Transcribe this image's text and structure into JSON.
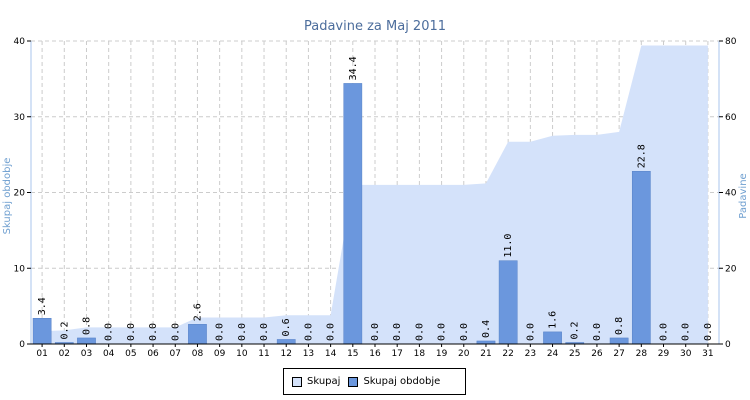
{
  "chart_data": {
    "type": "bar",
    "title": "Padavine za Maj 2011",
    "ylabel_left": "Skupaj obdobje",
    "ylabel_right": "Padavine",
    "ylim_left": [
      0,
      40
    ],
    "ylim_right": [
      0,
      80
    ],
    "yticks_left": [
      "0",
      "10",
      "20",
      "30",
      "40"
    ],
    "yticks_right": [
      "0",
      "20",
      "40",
      "60",
      "80"
    ],
    "grid": true,
    "legend_position": "bottom",
    "categories": [
      "01",
      "02",
      "03",
      "04",
      "05",
      "06",
      "07",
      "08",
      "09",
      "10",
      "11",
      "12",
      "13",
      "14",
      "15",
      "16",
      "17",
      "18",
      "19",
      "20",
      "21",
      "22",
      "23",
      "24",
      "25",
      "26",
      "27",
      "28",
      "29",
      "30",
      "31"
    ],
    "series": [
      {
        "name": "Skupaj",
        "type": "area",
        "axis": "right",
        "color": "#d4e2fa",
        "values": [
          3.4,
          3.6,
          4.4,
          4.4,
          4.4,
          4.4,
          4.4,
          7.0,
          7.0,
          7.0,
          7.0,
          7.6,
          7.6,
          7.6,
          42.0,
          42.0,
          42.0,
          42.0,
          42.0,
          42.0,
          42.4,
          53.4,
          53.4,
          55.0,
          55.2,
          55.2,
          56.0,
          78.8,
          78.8,
          78.8,
          78.8
        ]
      },
      {
        "name": "Skupaj obdobje",
        "type": "bar",
        "axis": "left",
        "color": "#6b97dd",
        "values": [
          3.4,
          0.2,
          0.8,
          0.0,
          0.0,
          0.0,
          0.0,
          2.6,
          0.0,
          0.0,
          0.0,
          0.6,
          0.0,
          0.0,
          34.4,
          0.0,
          0.0,
          0.0,
          0.0,
          0.0,
          0.4,
          11.0,
          0.0,
          1.6,
          0.2,
          0.0,
          0.8,
          22.8,
          0.0,
          0.0,
          0.0
        ],
        "labels": [
          "3.4",
          "0.2",
          "0.8",
          "0.0",
          "0.0",
          "0.0",
          "0.0",
          "2.6",
          "0.0",
          "0.0",
          "0.0",
          "0.6",
          "0.0",
          "0.0",
          "34.4",
          "0.0",
          "0.0",
          "0.0",
          "0.0",
          "0.0",
          "0.4",
          "11.0",
          "0.0",
          "1.6",
          "0.2",
          "0.0",
          "0.8",
          "22.8",
          "0.0",
          "0.0",
          "0.0"
        ]
      }
    ]
  }
}
